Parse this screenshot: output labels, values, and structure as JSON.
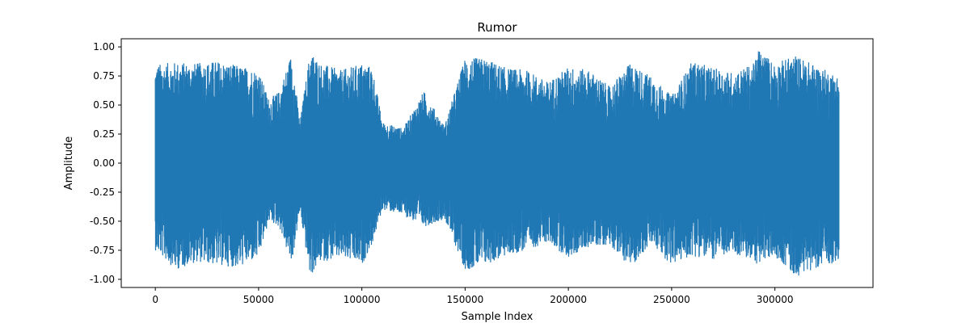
{
  "chart_data": {
    "type": "line",
    "title": "Rumor",
    "xlabel": "Sample Index",
    "ylabel": "Amplitude",
    "xlim": [
      -16500,
      347500
    ],
    "ylim": [
      -1.07,
      1.07
    ],
    "xticks": [
      0,
      50000,
      100000,
      150000,
      200000,
      250000,
      300000
    ],
    "yticks": [
      -1.0,
      -0.75,
      -0.5,
      -0.25,
      0.0,
      0.25,
      0.5,
      0.75,
      1.0
    ],
    "grid": false,
    "color": "#1f77b4",
    "series": [
      {
        "x": [
          0,
          10000,
          20000,
          30000,
          40000,
          50000,
          55000,
          60000,
          66000,
          70000,
          75000,
          80000,
          90000,
          100000,
          105000,
          110000,
          120000,
          130000,
          140000,
          150000,
          160000,
          170000,
          180000,
          190000,
          200000,
          210000,
          220000,
          230000,
          240000,
          250000,
          260000,
          270000,
          280000,
          290000,
          292000,
          300000,
          310000,
          320000,
          331000
        ],
        "y_max": [
          0.85,
          0.87,
          0.86,
          0.88,
          0.84,
          0.8,
          0.55,
          0.62,
          0.95,
          0.35,
          0.97,
          0.86,
          0.8,
          0.86,
          0.83,
          0.35,
          0.3,
          0.62,
          0.32,
          0.91,
          0.9,
          0.82,
          0.8,
          0.7,
          0.83,
          0.8,
          0.66,
          0.86,
          0.75,
          0.58,
          0.88,
          0.82,
          0.78,
          0.86,
          0.99,
          0.86,
          0.93,
          0.84,
          0.75
        ],
        "y_min": [
          -0.75,
          -0.92,
          -0.85,
          -0.88,
          -0.9,
          -0.82,
          -0.5,
          -0.55,
          -0.88,
          -0.42,
          -0.98,
          -0.85,
          -0.82,
          -0.88,
          -0.7,
          -0.4,
          -0.45,
          -0.55,
          -0.48,
          -0.92,
          -0.88,
          -0.8,
          -0.75,
          -0.68,
          -0.82,
          -0.72,
          -0.7,
          -0.9,
          -0.7,
          -0.88,
          -0.8,
          -0.83,
          -0.78,
          -0.85,
          -0.88,
          -0.8,
          -0.98,
          -0.9,
          -0.85
        ]
      }
    ]
  }
}
